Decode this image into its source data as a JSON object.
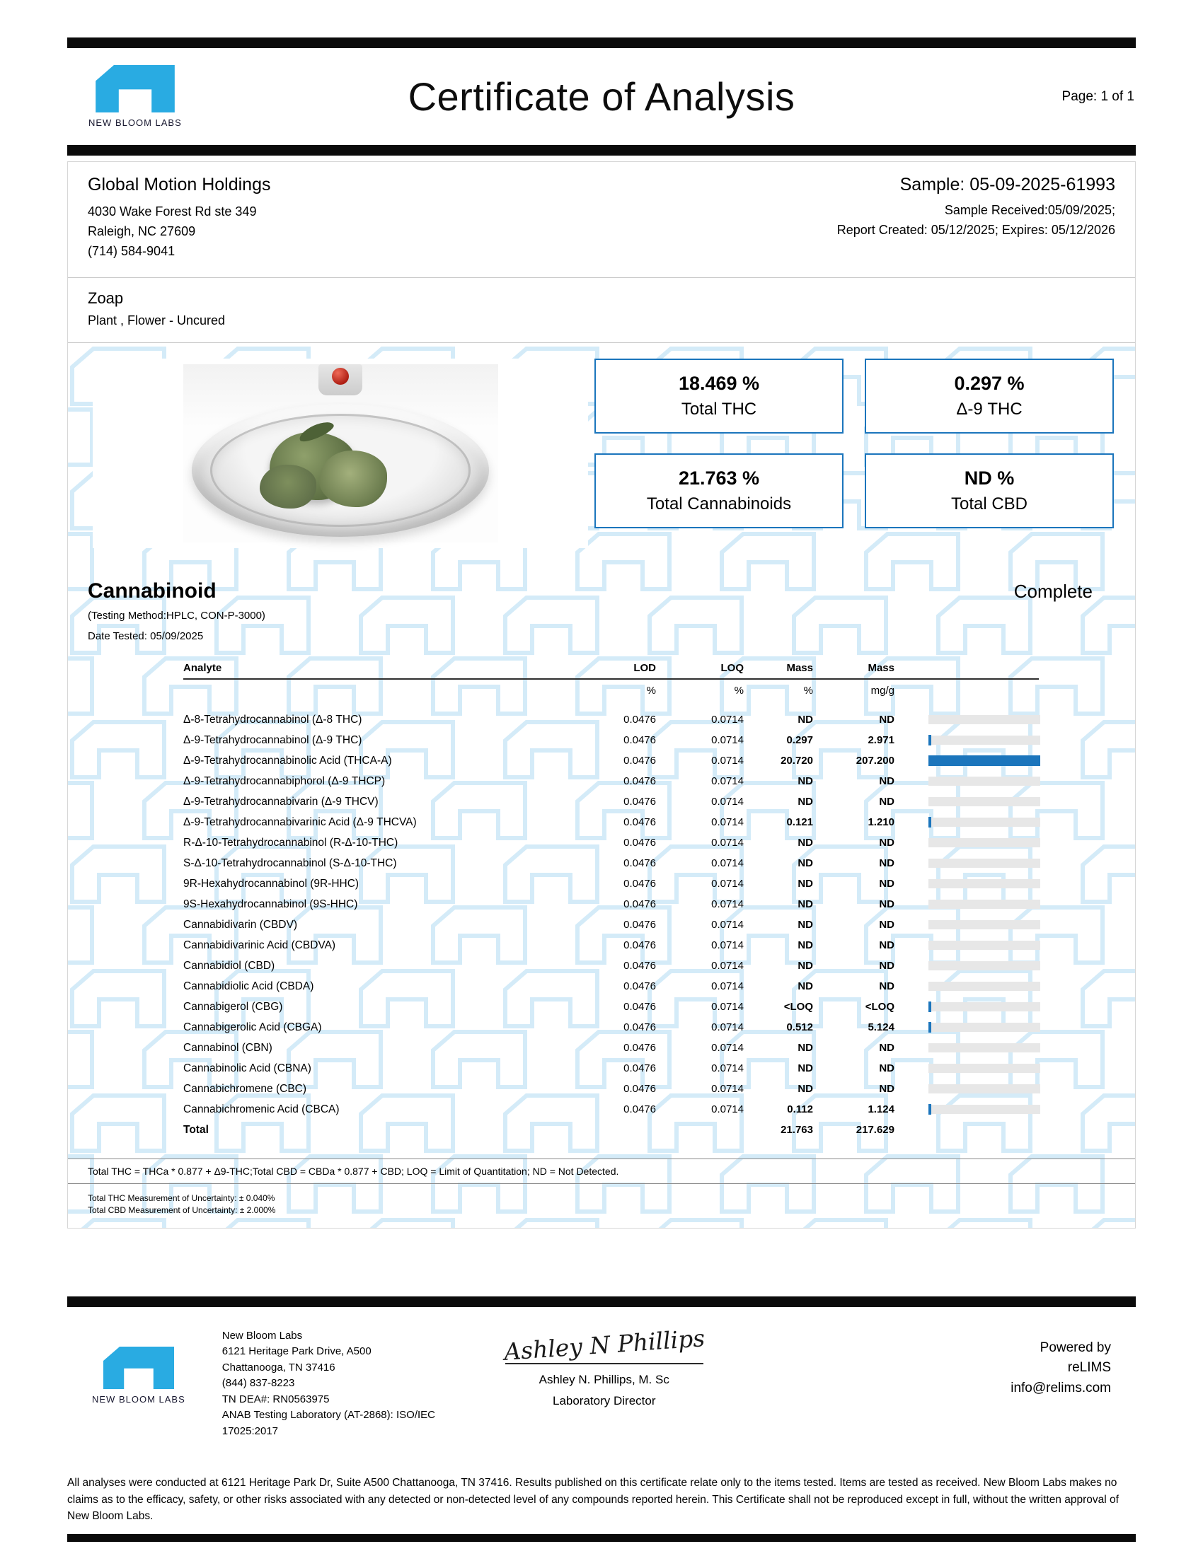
{
  "colors": {
    "logo_blue": "#29ABE2",
    "accent_border_blue": "#1B75BC",
    "bar_fill_blue": "#1B75BC",
    "watermark_blue": "#B9DEF4",
    "track_gray": "#E7E7E7",
    "black_bar": "#0B0B0B"
  },
  "header": {
    "logo_label": "NEW BLOOM LABS",
    "title": "Certificate of Analysis",
    "page": "Page: 1 of 1"
  },
  "client": {
    "name": "Global Motion Holdings",
    "address1": "4030 Wake Forest Rd ste 349",
    "address2": "Raleigh, NC 27609",
    "phone": "(714) 584-9041"
  },
  "sample": {
    "id": "Sample: 05-09-2025-61993",
    "received": "Sample Received:05/09/2025;",
    "report": "Report Created: 05/12/2025; Expires: 05/12/2026"
  },
  "product": {
    "name": "Zoap",
    "type": "Plant , Flower - Uncured"
  },
  "summary": [
    {
      "value": "18.469 %",
      "label": "Total THC"
    },
    {
      "value": "0.297 %",
      "label": "Δ-9 THC"
    },
    {
      "value": "21.763 %",
      "label": "Total Cannabinoids"
    },
    {
      "value": "ND %",
      "label": "Total CBD"
    }
  ],
  "cannabinoid": {
    "section_title": "Cannabinoid",
    "status": "Complete",
    "method": "(Testing Method:HPLC, CON-P-3000)",
    "date_tested": "Date Tested: 05/09/2025",
    "headers": {
      "analyte": "Analyte",
      "lod": "LOD",
      "loq": "LOQ",
      "mass": "Mass",
      "mass2": "Mass"
    },
    "units": {
      "lod": "%",
      "loq": "%",
      "mass": "%",
      "mass2": "mg/g"
    },
    "bar_scale_max": 20.72,
    "rows": [
      {
        "analyte": "Δ-8-Tetrahydrocannabinol (Δ-8 THC)",
        "lod": "0.0476",
        "loq": "0.0714",
        "mass_pct": "ND",
        "mass_mgg": "ND"
      },
      {
        "analyte": "Δ-9-Tetrahydrocannabinol (Δ-9 THC)",
        "lod": "0.0476",
        "loq": "0.0714",
        "mass_pct": "0.297",
        "mass_mgg": "2.971"
      },
      {
        "analyte": "Δ-9-Tetrahydrocannabinolic Acid (THCA-A)",
        "lod": "0.0476",
        "loq": "0.0714",
        "mass_pct": "20.720",
        "mass_mgg": "207.200"
      },
      {
        "analyte": "Δ-9-Tetrahydrocannabiphorol (Δ-9 THCP)",
        "lod": "0.0476",
        "loq": "0.0714",
        "mass_pct": "ND",
        "mass_mgg": "ND"
      },
      {
        "analyte": "Δ-9-Tetrahydrocannabivarin (Δ-9 THCV)",
        "lod": "0.0476",
        "loq": "0.0714",
        "mass_pct": "ND",
        "mass_mgg": "ND"
      },
      {
        "analyte": "Δ-9-Tetrahydrocannabivarinic Acid (Δ-9 THCVA)",
        "lod": "0.0476",
        "loq": "0.0714",
        "mass_pct": "0.121",
        "mass_mgg": "1.210"
      },
      {
        "analyte": "R-Δ-10-Tetrahydrocannabinol (R-Δ-10-THC)",
        "lod": "0.0476",
        "loq": "0.0714",
        "mass_pct": "ND",
        "mass_mgg": "ND"
      },
      {
        "analyte": "S-Δ-10-Tetrahydrocannabinol (S-Δ-10-THC)",
        "lod": "0.0476",
        "loq": "0.0714",
        "mass_pct": "ND",
        "mass_mgg": "ND"
      },
      {
        "analyte": "9R-Hexahydrocannabinol (9R-HHC)",
        "lod": "0.0476",
        "loq": "0.0714",
        "mass_pct": "ND",
        "mass_mgg": "ND"
      },
      {
        "analyte": "9S-Hexahydrocannabinol (9S-HHC)",
        "lod": "0.0476",
        "loq": "0.0714",
        "mass_pct": "ND",
        "mass_mgg": "ND"
      },
      {
        "analyte": "Cannabidivarin (CBDV)",
        "lod": "0.0476",
        "loq": "0.0714",
        "mass_pct": "ND",
        "mass_mgg": "ND"
      },
      {
        "analyte": "Cannabidivarinic Acid (CBDVA)",
        "lod": "0.0476",
        "loq": "0.0714",
        "mass_pct": "ND",
        "mass_mgg": "ND"
      },
      {
        "analyte": "Cannabidiol (CBD)",
        "lod": "0.0476",
        "loq": "0.0714",
        "mass_pct": "ND",
        "mass_mgg": "ND"
      },
      {
        "analyte": "Cannabidiolic Acid (CBDA)",
        "lod": "0.0476",
        "loq": "0.0714",
        "mass_pct": "ND",
        "mass_mgg": "ND"
      },
      {
        "analyte": "Cannabigerol (CBG)",
        "lod": "0.0476",
        "loq": "0.0714",
        "mass_pct": "<LOQ",
        "mass_mgg": "<LOQ"
      },
      {
        "analyte": "Cannabigerolic Acid (CBGA)",
        "lod": "0.0476",
        "loq": "0.0714",
        "mass_pct": "0.512",
        "mass_mgg": "5.124"
      },
      {
        "analyte": "Cannabinol (CBN)",
        "lod": "0.0476",
        "loq": "0.0714",
        "mass_pct": "ND",
        "mass_mgg": "ND"
      },
      {
        "analyte": "Cannabinolic Acid (CBNA)",
        "lod": "0.0476",
        "loq": "0.0714",
        "mass_pct": "ND",
        "mass_mgg": "ND"
      },
      {
        "analyte": "Cannabichromene (CBC)",
        "lod": "0.0476",
        "loq": "0.0714",
        "mass_pct": "ND",
        "mass_mgg": "ND"
      },
      {
        "analyte": "Cannabichromenic Acid (CBCA)",
        "lod": "0.0476",
        "loq": "0.0714",
        "mass_pct": "0.112",
        "mass_mgg": "1.124"
      }
    ],
    "total": {
      "label": "Total",
      "mass_pct": "21.763",
      "mass_mgg": "217.629"
    }
  },
  "footnotes": {
    "formula": "Total THC = THCa * 0.877 + Δ9-THC;Total CBD = CBDa * 0.877 + CBD; LOQ = Limit of Quantitation; ND = Not Detected.",
    "thc_uncertainty": "Total THC Measurement of Uncertainty: ± 0.040%",
    "cbd_uncertainty": "Total CBD Measurement of Uncertainty: ± 2.000%"
  },
  "footer": {
    "logo_label": "NEW BLOOM LABS",
    "lab_lines": [
      "New Bloom Labs",
      "6121 Heritage Park Drive, A500",
      "Chattanooga, TN 37416",
      "(844) 837-8223",
      "TN DEA#: RN0563975",
      "ANAB Testing Laboratory (AT-2868): ISO/IEC",
      "17025:2017"
    ],
    "signature_name": "Ashley N Phillips",
    "signatory": "Ashley N. Phillips, M. Sc",
    "signatory_title": "Laboratory Director",
    "powered_by": "Powered by",
    "powered_brand": "reLIMS",
    "powered_email": "info@relims.com",
    "disclaimer": "All analyses were conducted at 6121 Heritage Park Dr, Suite A500 Chattanooga, TN 37416. Results published on this certificate relate only to the items tested. Items are tested as received. New Bloom Labs makes no claims as to the efficacy, safety, or other risks associated with any detected or non-detected level of any compounds reported herein. This Certificate shall not be reproduced except in full, without the written approval of New Bloom Labs."
  }
}
